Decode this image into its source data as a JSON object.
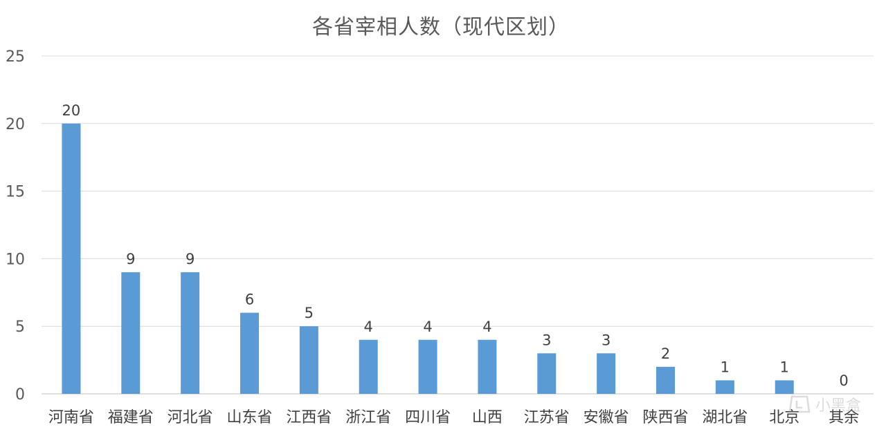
{
  "chart_data": {
    "type": "bar",
    "title": "各省宰相人数（现代区划）",
    "xlabel": "",
    "ylabel": "",
    "ylim": [
      0,
      25
    ],
    "yticks": [
      0,
      5,
      10,
      15,
      20,
      25
    ],
    "grid": true,
    "legend": "none",
    "bar_color": "#5b9bd5",
    "categories": [
      "河南省",
      "福建省",
      "河北省",
      "山东省",
      "江西省",
      "浙江省",
      "四川省",
      "山西",
      "江苏省",
      "安徽省",
      "陕西省",
      "湖北省",
      "北京",
      "其余"
    ],
    "values": [
      20,
      9,
      9,
      6,
      5,
      4,
      4,
      4,
      3,
      3,
      2,
      1,
      1,
      0
    ],
    "data_labels": true
  },
  "watermark": {
    "text": "小黑盒"
  }
}
